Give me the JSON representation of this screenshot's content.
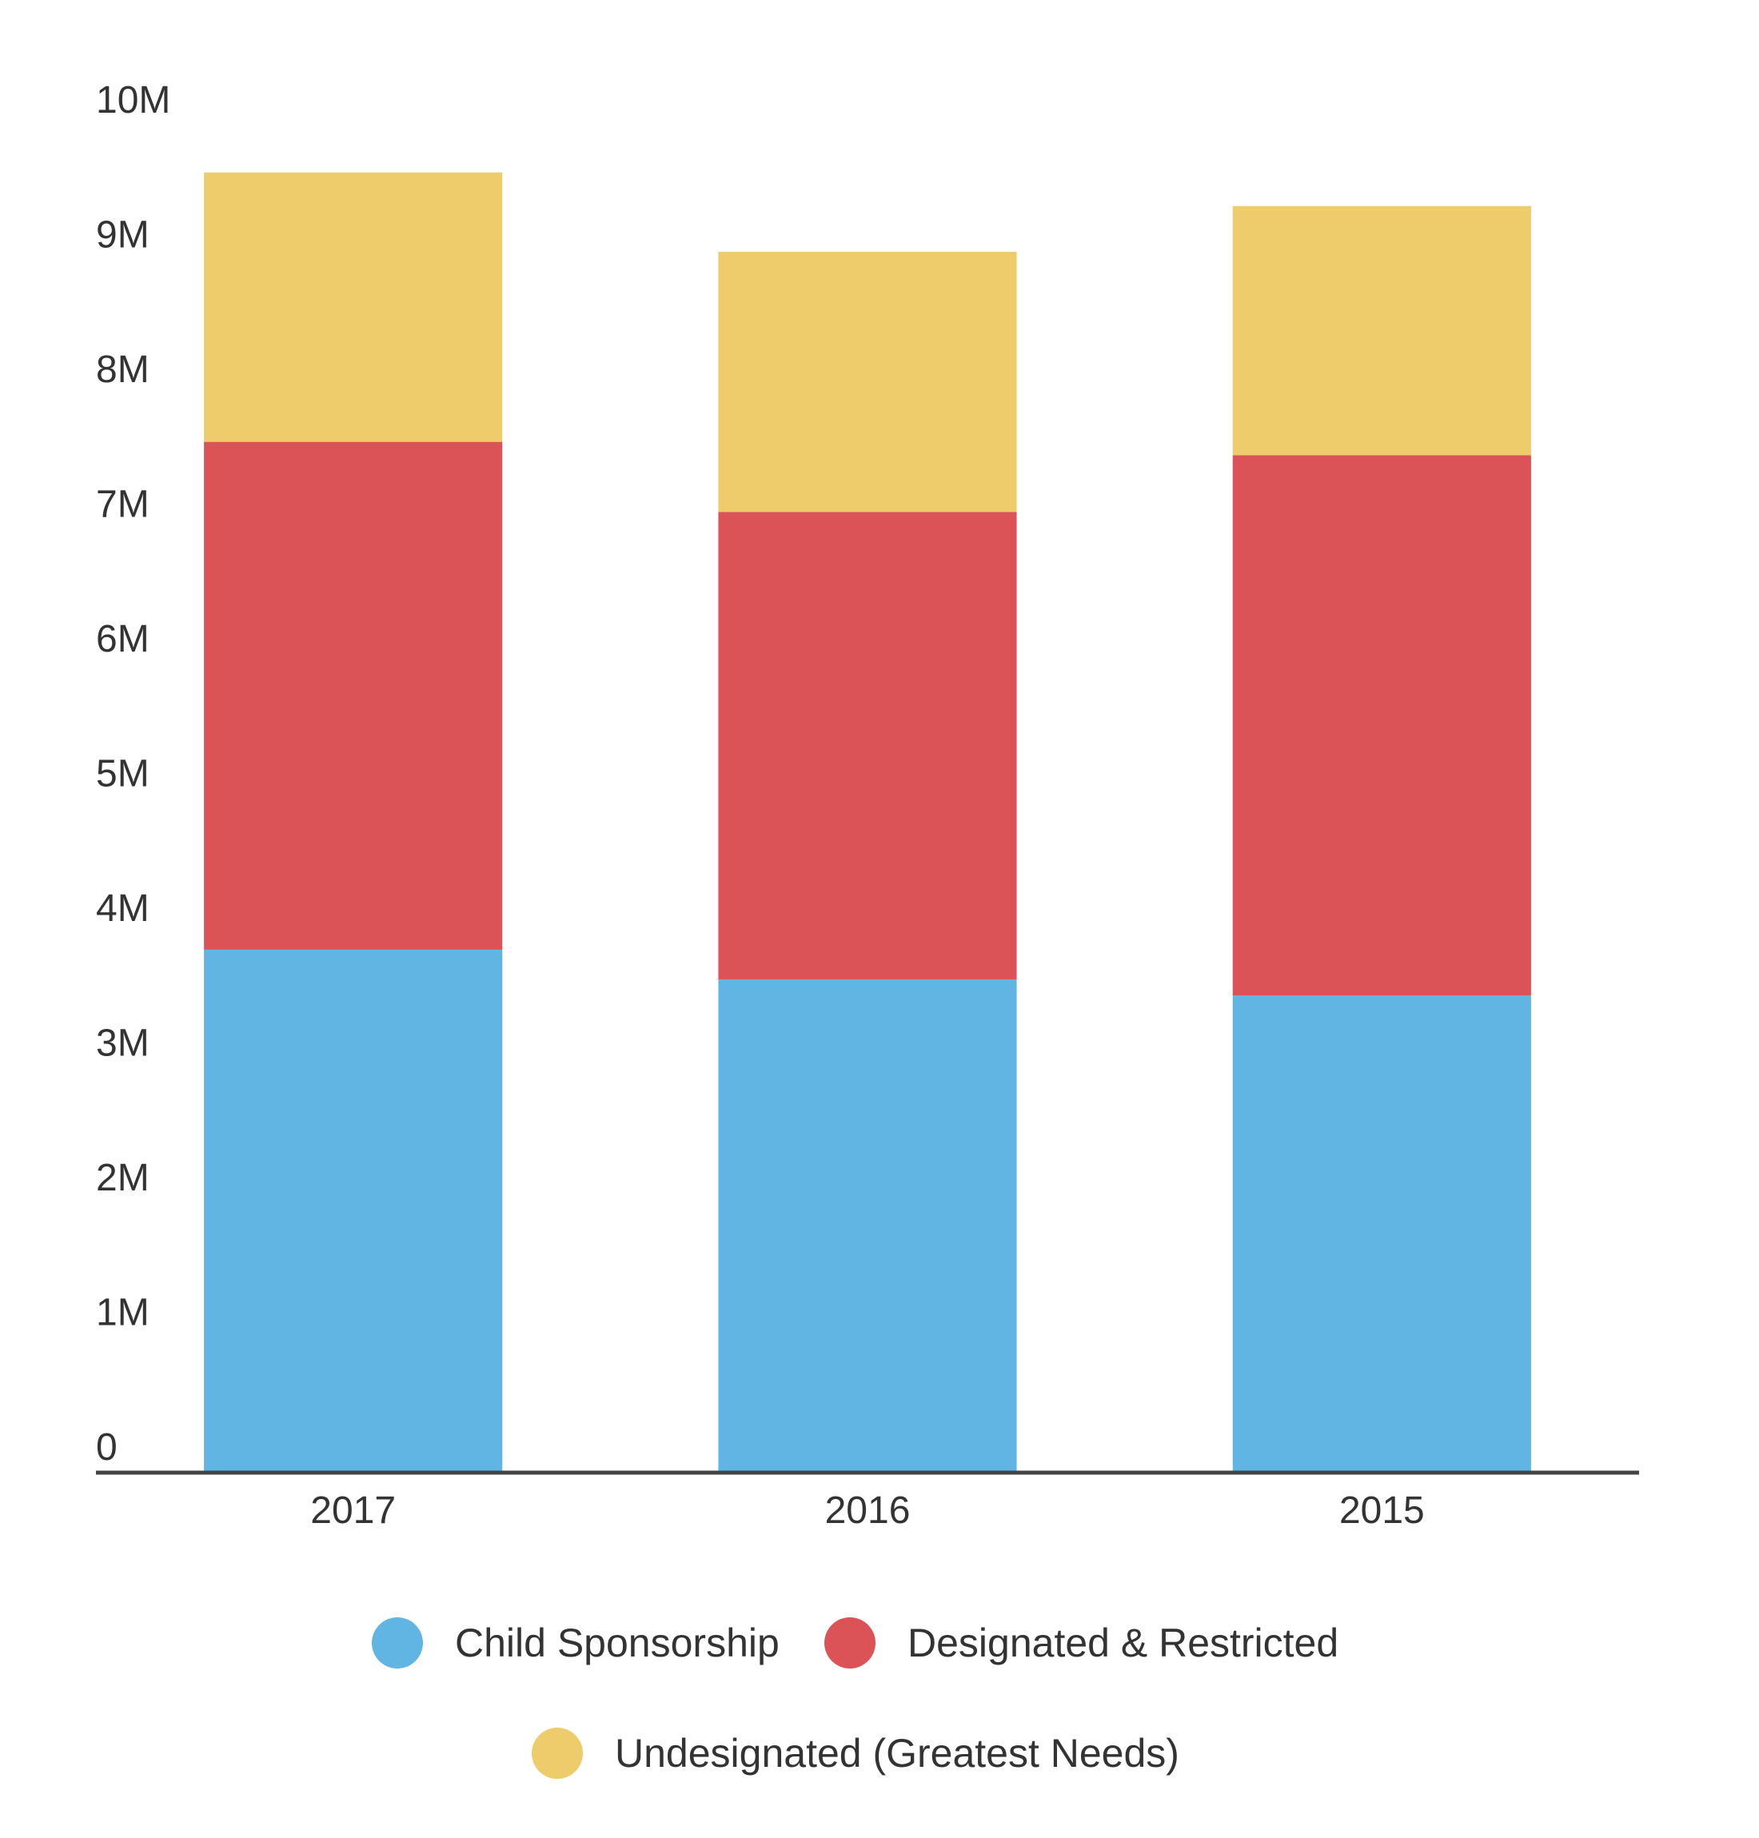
{
  "chart_data": {
    "type": "bar",
    "stacked": true,
    "categories": [
      "2017",
      "2016",
      "2015"
    ],
    "series": [
      {
        "name": "Child Sponsorship",
        "color": "#60b5e3",
        "values": [
          3.87,
          3.65,
          3.53
        ]
      },
      {
        "name": "Designated & Restricted",
        "color": "#db5356",
        "values": [
          3.77,
          3.47,
          4.01
        ]
      },
      {
        "name": "Undesignated (Greatest Needs)",
        "color": "#eecb6b",
        "values": [
          2.0,
          1.93,
          1.85
        ]
      }
    ],
    "yticks": [
      "0",
      "1M",
      "2M",
      "3M",
      "4M",
      "5M",
      "6M",
      "7M",
      "8M",
      "9M",
      "10M"
    ],
    "ylim": [
      0,
      10
    ],
    "grid": false,
    "legend_position": "bottom",
    "title": "",
    "xlabel": "",
    "ylabel": "",
    "axis_color": "#444444"
  }
}
